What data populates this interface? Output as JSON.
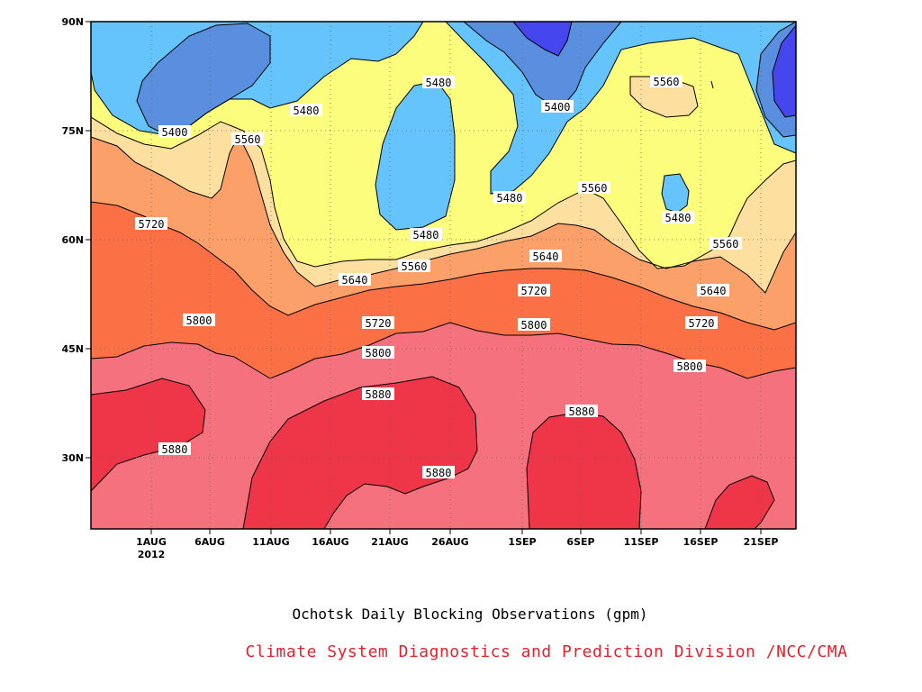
{
  "chart_data": {
    "type": "heatmap",
    "title": "Ochotsk Daily Blocking Observations (gpm)",
    "credit": "Climate System Diagnostics and Prediction Division /NCC/CMA",
    "x_ticks": [
      "1AUG",
      "6AUG",
      "11AUG",
      "16AUG",
      "21AUG",
      "26AUG",
      "1SEP",
      "6SEP",
      "11SEP",
      "16SEP",
      "21SEP"
    ],
    "x_year": "2012",
    "y_ticks": [
      "30N",
      "45N",
      "60N",
      "75N",
      "90N"
    ],
    "y_tick_values": [
      30,
      45,
      60,
      75,
      90
    ],
    "ylim": [
      20,
      90
    ],
    "grid": true,
    "contour_levels": [
      5400,
      5480,
      5560,
      5640,
      5720,
      5800,
      5880
    ],
    "fill_colors": {
      "below_5400": "#5a8fe0",
      "below_5480": "#64c4fb",
      "5480_5560": "#fdfd7d",
      "5560_5640": "#fde0a0",
      "5640_5720": "#fca06a",
      "5720_5800": "#fb7045",
      "5800_5880": "#f4717d",
      "above_5880": "#ef3548",
      "deep_low": "#4646ef"
    },
    "contour_labels": [
      {
        "text": "5400"
      },
      {
        "text": "5400"
      },
      {
        "text": "5480"
      },
      {
        "text": "5480"
      },
      {
        "text": "5480"
      },
      {
        "text": "5480"
      },
      {
        "text": "5480"
      },
      {
        "text": "5560"
      },
      {
        "text": "5560"
      },
      {
        "text": "5560"
      },
      {
        "text": "5560"
      },
      {
        "text": "5560"
      },
      {
        "text": "5640"
      },
      {
        "text": "5640"
      },
      {
        "text": "5640"
      },
      {
        "text": "5720"
      },
      {
        "text": "5720"
      },
      {
        "text": "5720"
      },
      {
        "text": "5720"
      },
      {
        "text": "5800"
      },
      {
        "text": "5800"
      },
      {
        "text": "5800"
      },
      {
        "text": "5800"
      },
      {
        "text": "5880"
      },
      {
        "text": "5880"
      },
      {
        "text": "5880"
      },
      {
        "text": "5880"
      }
    ]
  }
}
